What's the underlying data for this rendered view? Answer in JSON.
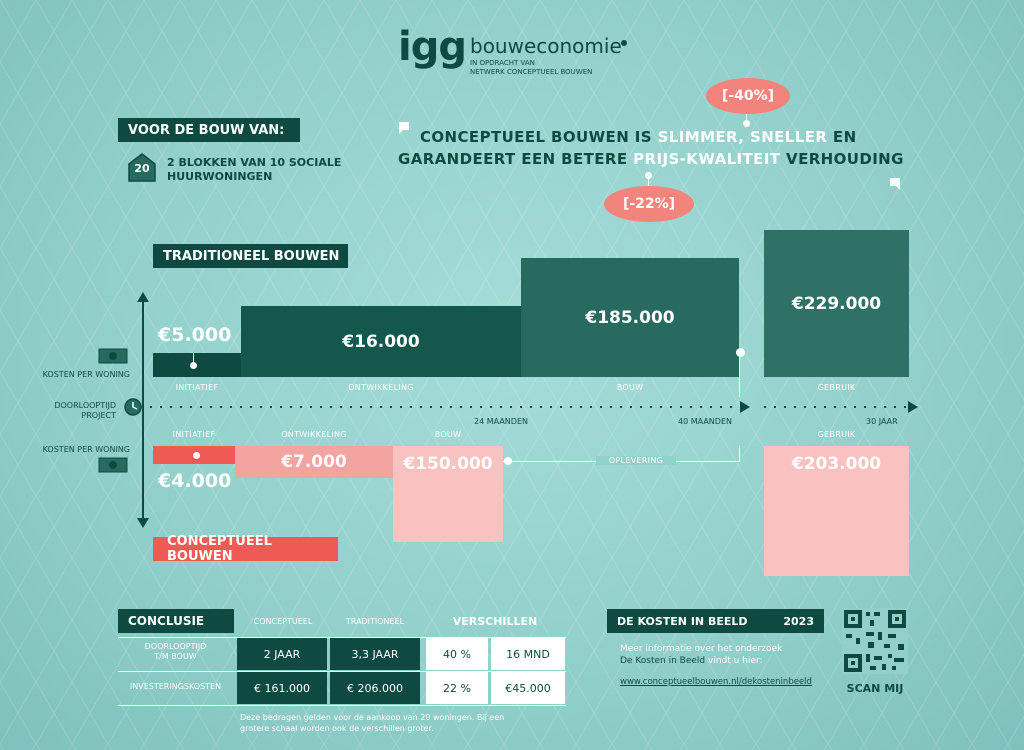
{
  "header": {
    "logo": "igg",
    "brand": "bouweconomie",
    "subtitle_line1": "IN OPDRACHT VAN",
    "subtitle_line2": "NETWERK CONCEPTUEEL BOUWEN"
  },
  "for_building": {
    "label": "VOOR DE BOUW VAN:",
    "badge_number": "20",
    "text_line1": "2 BLOKKEN VAN 10 SOCIALE",
    "text_line2": "HUURWONINGEN"
  },
  "quote": {
    "line1_a": "CONCEPTUEEL BOUWEN IS ",
    "line1_b": "SLIMMER, SNELLER",
    "line1_c": " EN",
    "line2_a": "GARANDEERT EEN BETERE ",
    "line2_b": "PRIJS-KWALITEIT",
    "line2_c": " VERHOUDING",
    "bubble_top": "[-40%]",
    "bubble_bottom": "[-22%]"
  },
  "traditional": {
    "label": "TRADITIONEEL BOUWEN",
    "initiatief": "€5.000",
    "ontwikkeling": "€16.000",
    "bouw": "€185.000",
    "gebruik": "€229.000"
  },
  "conceptual": {
    "label": "CONCEPTUEEL BOUWEN",
    "initiatief": "€4.000",
    "ontwikkeling": "€7.000",
    "bouw": "€150.000",
    "gebruik": "€203.000",
    "oplevering": "OPLEVERING"
  },
  "axis": {
    "kosten_top": "KOSTEN PER WONING",
    "kosten_bottom": "KOSTEN PER WONING",
    "doorlooptijd_line1": "DOORLOOPTIJD",
    "doorlooptijd_line2": "PROJECT",
    "phases_top": [
      "INITIATIEF",
      "ONTWIKKELING",
      "BOUW",
      "GEBRUIK"
    ],
    "phases_bottom": [
      "INITIATIEF",
      "ONTWIKKELING",
      "BOUW",
      "GEBRUIK"
    ],
    "tick_24": "24 MAANDEN",
    "tick_40": "40 MAANDEN",
    "tick_30y": "30 JAAR"
  },
  "conclusion": {
    "title": "CONCLUSIE",
    "col_conceptual": "CONCEPTUEEL",
    "col_traditional": "TRADITIONEEL",
    "col_diff": "VERSCHILLEN",
    "row1_label_line1": "DOORLOOPTIJD",
    "row1_label_line2": "T/M BOUW",
    "row1_conceptual": "2 JAAR",
    "row1_traditional": "3,3 JAAR",
    "row1_pct": "40 %",
    "row1_abs": "16 MND",
    "row2_label": "INVESTERINGSKOSTEN",
    "row2_conceptual": "€ 161.000",
    "row2_traditional": "€ 206.000",
    "row2_pct": "22 %",
    "row2_abs": "€45.000",
    "footnote_line1": "Deze bedragen gelden voor de aankoop van 20 woningen. Bij een",
    "footnote_line2": "grotere schaal worden ook de verschillen groter."
  },
  "costs_box": {
    "title": "DE KOSTEN IN BEELD",
    "year": "2023",
    "info_a": "Meer informatie over het onderzoek",
    "info_b1": "De Kosten in Beeld",
    "info_b2": " vindt u hier:",
    "url": "www.conceptueelbouwen.nl/dekosteninbeeld",
    "scan": "SCAN MIJ"
  },
  "colors": {
    "dark_green": "#0f4a42",
    "mid_green": "#276b60",
    "light_green": "#3f7e73",
    "coral": "#ef5a56",
    "light_coral": "#f3a3a0",
    "pale_coral": "#f7c2c0"
  },
  "icons": [
    "money-icon",
    "clock-icon",
    "house-icon",
    "qr-code-icon",
    "quote-open-icon",
    "quote-close-icon"
  ]
}
